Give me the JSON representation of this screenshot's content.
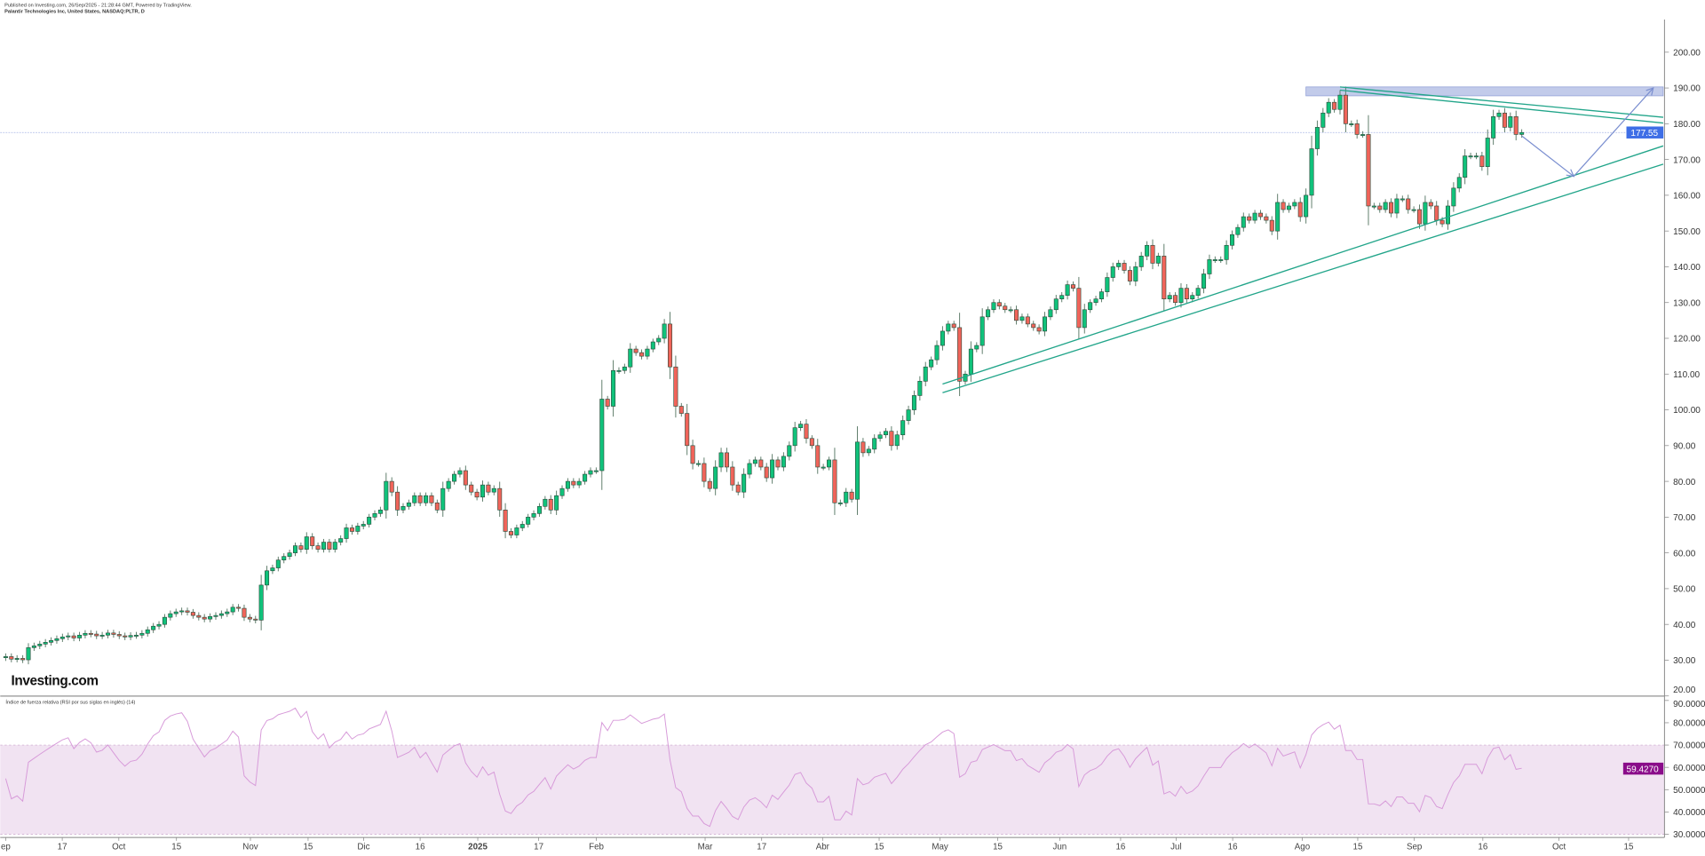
{
  "header": {
    "published": "Published on Investing.com, 26/Sep/2025 - 21:28:44 GMT, Powered by TradingView.",
    "symbol": "Palantir Technologies Inc, United States, NASDAQ:PLTR, D"
  },
  "logo": "Investing.com",
  "colors": {
    "up": "#10c27b",
    "down": "#f0645a",
    "candle_outline": "#2b4a3a",
    "trendline": "#22a58a",
    "arrow": "#7b8fd0",
    "zone": "#b7c2e6",
    "last_price_bg": "#3e6ee6",
    "rsi_line": "#d79ad9",
    "rsi_band": "#f1e3f2",
    "rsi_last_bg": "#8a0c8a"
  },
  "chart_data": [
    {
      "type": "candlestick",
      "title": "Palantir Technologies Inc, United States, NASDAQ:PLTR, D",
      "ylim": [
        20,
        205
      ],
      "grid": false,
      "price_axis": {
        "ticks": [
          "20.00",
          "30.00",
          "40.00",
          "50.00",
          "60.00",
          "70.00",
          "80.00",
          "90.00",
          "100.00",
          "110.00",
          "120.00",
          "130.00",
          "140.00",
          "150.00",
          "160.00",
          "170.00",
          "180.00",
          "190.00",
          "200.00"
        ]
      },
      "last_price": "177.55",
      "x_axis_labels": [
        "ep",
        "17",
        "Oct",
        "15",
        "Nov",
        "15",
        "Dic",
        "16",
        "2025",
        "17",
        "Feb",
        "Mar",
        "17",
        "Abr",
        "15",
        "May",
        "15",
        "Jun",
        "16",
        "Jul",
        "16",
        "Ago",
        "15",
        "Sep",
        "16",
        "Oct",
        "15"
      ],
      "months": [
        {
          "month": "2024-09",
          "closes": [
            31.0,
            30.3,
            30.5,
            30.1,
            33.5,
            34.0,
            34.5,
            35.0,
            35.5,
            36.0,
            36.5,
            36.8,
            36.2,
            37.0,
            37.5,
            37.3,
            36.8,
            37.0,
            37.6,
            37.2
          ]
        },
        {
          "month": "2024-10",
          "closes": [
            36.8,
            36.5,
            36.9,
            37.0,
            37.5,
            38.5,
            39.5,
            40.0,
            42.0,
            43.0,
            43.5,
            43.8,
            43.4,
            42.5,
            42.0,
            41.5,
            42.2,
            42.5,
            43.0,
            43.5,
            44.8,
            44.5,
            42.0
          ]
        },
        {
          "month": "2024-11",
          "closes": [
            41.5,
            41.2,
            51.0,
            55.0,
            55.8,
            58.0,
            59.0,
            60.0,
            62.0,
            61.0,
            64.5,
            62.0,
            61.0,
            63.0,
            61.0,
            63.0,
            64.0,
            67.0,
            66.0,
            67.5
          ]
        },
        {
          "month": "2024-12",
          "closes": [
            68.0,
            70.0,
            71.0,
            72.0,
            80.0,
            77.0,
            72.0,
            73.0,
            74.0,
            76.0,
            74.0,
            76.0,
            74.0,
            72.0,
            78.0,
            80.0,
            82.0,
            83.0,
            79.0,
            77.0,
            75.6
          ]
        },
        {
          "month": "2025-01",
          "closes": [
            79.0,
            77.0,
            78.0,
            72.0,
            66.0,
            65.0,
            67.0,
            68.0,
            70.0,
            71.0,
            73.0,
            75.0,
            72.0,
            76.0,
            78.0,
            80.0,
            79.0,
            80.0,
            82.0,
            83.0
          ]
        },
        {
          "month": "2025-02",
          "closes": [
            83.0,
            103.0,
            101.0,
            111.0,
            111.0,
            112.0,
            117.0,
            116.0,
            115.0,
            117.0,
            119.0,
            120.0,
            124.0,
            112.0,
            101.0,
            99.0,
            90.0,
            85.0,
            85.0
          ]
        },
        {
          "month": "2025-03",
          "closes": [
            80.0,
            78.0,
            84.0,
            88.0,
            84.0,
            79.0,
            77.0,
            82.0,
            85.0,
            86.0,
            84.0,
            81.0,
            86.0,
            84.0,
            87.0,
            90.0,
            95.0,
            96.0,
            92.0,
            90.0,
            84.0
          ]
        },
        {
          "month": "2025-04",
          "closes": [
            84.0,
            86.0,
            74.0,
            74.0,
            77.0,
            75.0,
            91.0,
            88.0,
            89.0,
            92.0,
            93.0,
            94.0,
            90.0,
            93.0,
            97.0,
            100.0,
            104.0,
            108.0,
            112.0,
            114.0,
            118.0
          ]
        },
        {
          "month": "2025-05",
          "closes": [
            122.0,
            124.0,
            123.0,
            108.0,
            110.0,
            117.0,
            118.0,
            126.0,
            128.0,
            130.0,
            129.0,
            128.0,
            128.0,
            125.0,
            126.0,
            124.0,
            123.0,
            122.0,
            126.0,
            128.0,
            131.0
          ]
        },
        {
          "month": "2025-06",
          "closes": [
            132.0,
            135.0,
            134.0,
            123.0,
            128.0,
            130.0,
            131.0,
            133.0,
            137.0,
            140.0,
            141.0,
            139.0,
            136.0,
            140.0,
            143.0,
            146.0,
            141.0,
            143.0,
            131.0,
            132.0
          ]
        },
        {
          "month": "2025-07",
          "closes": [
            130.0,
            134.0,
            131.0,
            132.0,
            134.0,
            138.0,
            142.0,
            142.0,
            142.0,
            146.0,
            149.0,
            151.0,
            154.0,
            153.0,
            155.0,
            154.0,
            153.0,
            150.0,
            158.0,
            156.0,
            157.0,
            158.0
          ]
        },
        {
          "month": "2025-08",
          "closes": [
            154.0,
            160.0,
            173.0,
            179.0,
            183.0,
            186.0,
            184.0,
            188.0,
            180.0,
            180.0,
            177.0,
            177.0,
            157.0,
            157.0,
            156.0,
            158.0,
            155.0,
            159.0,
            159.0,
            156.0,
            156.0
          ]
        },
        {
          "month": "2025-09",
          "closes": [
            152.0,
            158.0,
            157.0,
            153.0,
            152.0,
            157.0,
            162.0,
            165.0,
            171.0,
            171.0,
            171.0,
            168.0,
            176.0,
            182.0,
            183.0,
            179.0,
            182.0,
            177.0,
            177.55
          ]
        }
      ],
      "drawings": {
        "trendlines": [
          {
            "from": [
              "2025-05-01",
              107.2
            ],
            "to": [
              "2025-10-22",
              173.8
            ]
          },
          {
            "from": [
              "2025-05-01",
              104.8
            ],
            "to": [
              "2025-10-22",
              168.7
            ]
          },
          {
            "from": [
              "2025-08-12",
              190.3
            ],
            "to": [
              "2025-10-22",
              181.8
            ]
          },
          {
            "from": [
              "2025-08-12",
              189.4
            ],
            "to": [
              "2025-10-22",
              180.2
            ]
          }
        ],
        "resistance_zone": {
          "from": "2025-08-04",
          "to": "2025-10-22",
          "top": 190.3,
          "bottom": 187.8
        },
        "projection_arrow": [
          [
            "2025-09-26",
            176.6
          ],
          [
            "2025-10-04",
            165.3
          ],
          [
            "2025-10-20",
            190.0
          ]
        ]
      }
    },
    {
      "type": "line",
      "title": "Índice de fuerza relativa (RSI por sus siglas en inglés) (14)",
      "ylim": [
        28,
        92
      ],
      "axis_ticks": [
        "30.0000",
        "40.0000",
        "50.0000",
        "60.0000",
        "70.0000",
        "80.0000",
        "90.0000"
      ],
      "band": [
        30,
        70
      ],
      "period": 14,
      "last_value": "59.4270"
    }
  ]
}
